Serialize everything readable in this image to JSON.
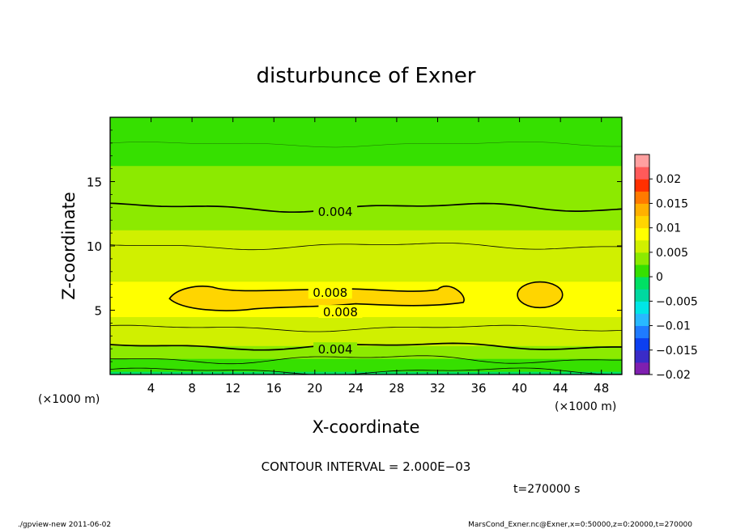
{
  "chart_data": {
    "type": "heatmap",
    "title": "disturbunce of Exner",
    "xlabel": "X-coordinate",
    "ylabel": "Z-coordinate",
    "x_units": "(×1000 m)",
    "y_units": "(×1000 m)",
    "xlim": [
      0,
      50
    ],
    "ylim": [
      0,
      20
    ],
    "x_ticks": [
      4,
      8,
      12,
      16,
      20,
      24,
      28,
      32,
      36,
      40,
      44,
      48
    ],
    "x_tick_labels": [
      "4",
      "8",
      "12",
      "16",
      "20",
      "24",
      "28",
      "32",
      "36",
      "40",
      "44",
      "48"
    ],
    "y_ticks": [
      5,
      10,
      15
    ],
    "y_tick_labels": [
      "5",
      "10",
      "15"
    ],
    "colorbar": {
      "levels": [
        -0.02,
        -0.015,
        -0.01,
        -0.005,
        0,
        0.005,
        0.01,
        0.015,
        0.02
      ],
      "tick_labels": [
        "−0.02",
        "−0.015",
        "−0.01",
        "−0.005",
        "0",
        "0.005",
        "0.01",
        "0.015",
        "0.02"
      ],
      "colors": [
        "#7f1fb0",
        "#3a2bc8",
        "#0c3ff0",
        "#1f7bff",
        "#28b9ff",
        "#00e6e6",
        "#00d8a0",
        "#00e064",
        "#36e000",
        "#8cea00",
        "#d0f000",
        "#ffff00",
        "#ffd500",
        "#ffb000",
        "#ff7a00",
        "#ff3000",
        "#ff5a5a",
        "#ffa0a0"
      ]
    },
    "profile": {
      "z": [
        0,
        0.5,
        1,
        1.5,
        2,
        2.5,
        3,
        3.5,
        4,
        5,
        6,
        7,
        8,
        9,
        10,
        11,
        12,
        13,
        14,
        15,
        16,
        17,
        18,
        19,
        20
      ],
      "value": [
        -0.001,
        0.0005,
        0.002,
        0.0033,
        0.0045,
        0.0053,
        0.006,
        0.0066,
        0.0072,
        0.0078,
        0.0081,
        0.0077,
        0.0071,
        0.0064,
        0.0059,
        0.0052,
        0.0046,
        0.004,
        0.0035,
        0.003,
        0.0026,
        0.0023,
        0.0021,
        0.0019,
        0.0017
      ]
    },
    "contour_interval": 0.002,
    "contour_labels": [
      {
        "text": "0.004",
        "x": 22,
        "z": 12.7
      },
      {
        "text": "0.008",
        "x": 21.5,
        "z": 6.4
      },
      {
        "text": "0.008",
        "x": 22.5,
        "z": 4.9
      },
      {
        "text": "0.004",
        "x": 22,
        "z": 2.0
      }
    ]
  },
  "contour_interval_text": "CONTOUR INTERVAL = 2.000E−03",
  "time_text": "t=270000  s",
  "footer_left": "./gpview-new   2011-06-02",
  "footer_right": "MarsCond_Exner.nc@Exner,x=0:50000,z=0:20000,t=270000"
}
